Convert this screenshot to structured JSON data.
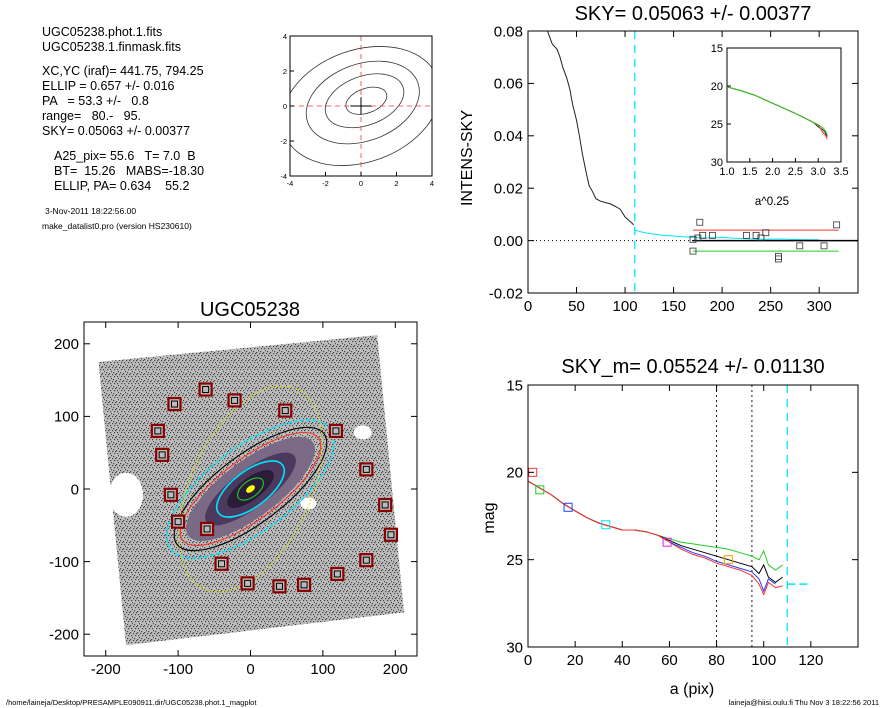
{
  "info": {
    "lines_a": [
      "UGC05238.phot.1.fits",
      "UGC05238.1.finmask.fits"
    ],
    "lines_b": [
      "XC,YC (iraf)=   441.75, 794.25",
      "ELLIP = 0.657 +/- 0.016",
      "PA   = 53.3 +/-   0.8",
      "range=   80.-   95.",
      "SKY= 0.05063 +/- 0.00377"
    ],
    "lines_c": [
      "A25_pix= 55.6   T= 7.0  B",
      "BT=  15.26   MABS=-18.30",
      "ELLIP, PA= 0.634    55.2"
    ],
    "date": "3-Nov-2011 18:22:56.00",
    "program": "make_datalist0.pro (version HS230610)"
  },
  "footer": {
    "left": "/home/laineja/Desktop/PRESAMPLE090911.dir/UGC05238.phot.1_magplot",
    "right": "laineja@hiisi.oulu.fi  Thu Nov  3 18:22:56 2011"
  },
  "colors": {
    "axis": "#000000",
    "cyan": "#00e5ff",
    "red": "#ff3030",
    "green": "#22cc22",
    "blue": "#2040ff",
    "magenta": "#dd22dd",
    "orange": "#ff9900"
  },
  "chart_data": [
    {
      "id": "contour",
      "type": "line",
      "title": "",
      "xlim": [
        -4,
        4
      ],
      "ylim": [
        -4,
        4
      ],
      "x_ticks": [
        "-4",
        "-2",
        "0",
        "2",
        "4"
      ],
      "y_ticks": [
        "-4",
        "-2",
        "0",
        "2",
        "4"
      ],
      "center": [
        0,
        0
      ],
      "contour_levels": [
        {
          "cx": 0.3,
          "cy": 0.3,
          "rx": 1.2,
          "ry": 0.7,
          "rot": -20
        },
        {
          "cx": 0.2,
          "cy": 0.3,
          "rx": 2.3,
          "ry": 1.4,
          "rot": -20
        },
        {
          "cx": 0.1,
          "cy": 0.2,
          "rx": 3.3,
          "ry": 2.2,
          "rot": -20
        },
        {
          "cx": 0.0,
          "cy": 0.0,
          "rx": 4.6,
          "ry": 3.2,
          "rot": -20
        }
      ]
    },
    {
      "id": "sky",
      "type": "line",
      "title": "SKY= 0.05063 +/- 0.00377",
      "xlabel": "",
      "ylabel": "INTENS-SKY",
      "xlim": [
        0,
        340
      ],
      "ylim": [
        -0.02,
        0.08
      ],
      "x_ticks": [
        "0",
        "50",
        "100",
        "150",
        "200",
        "250",
        "300"
      ],
      "y_ticks": [
        "-0.02",
        "0.00",
        "0.02",
        "0.04",
        "0.06",
        "0.08"
      ],
      "profile_x": [
        20,
        25,
        30,
        33,
        36,
        40,
        43,
        46,
        50,
        53,
        56,
        60,
        63,
        66,
        70,
        75,
        80,
        85,
        90,
        95,
        100,
        103,
        106,
        109
      ],
      "profile_y": [
        0.08,
        0.075,
        0.073,
        0.07,
        0.066,
        0.062,
        0.058,
        0.052,
        0.046,
        0.04,
        0.033,
        0.026,
        0.021,
        0.019,
        0.016,
        0.015,
        0.0145,
        0.014,
        0.013,
        0.012,
        0.009,
        0.008,
        0.007,
        0.006
      ],
      "cyan_x": [
        110,
        120,
        140,
        160,
        180,
        200,
        220,
        240,
        260,
        280,
        300
      ],
      "cyan_y": [
        0.004,
        0.003,
        0.002,
        0.0015,
        0.001,
        0.0012,
        0.0008,
        0.0005,
        0.0006,
        0.0004,
        0.0003
      ],
      "boxes": [
        [
          170,
          -0.004
        ],
        [
          175,
          0.001
        ],
        [
          177,
          0.007
        ],
        [
          180,
          0.002
        ],
        [
          190,
          0.002
        ],
        [
          225,
          0.002
        ],
        [
          235,
          0.002
        ],
        [
          240,
          0.001
        ],
        [
          245,
          0.003
        ],
        [
          258,
          -0.006
        ],
        [
          258,
          -0.007
        ],
        [
          280,
          -0.002
        ],
        [
          305,
          -0.002
        ],
        [
          318,
          0.006
        ],
        [
          170,
          0.0005
        ]
      ],
      "hlines": [
        {
          "y": 0.004,
          "x0": 170,
          "x1": 320,
          "c": "red"
        },
        {
          "y": -0.004,
          "x0": 170,
          "x1": 320,
          "c": "green"
        },
        {
          "y": 0.0,
          "x0": 170,
          "x1": 340,
          "c": "axis"
        }
      ],
      "vline_x": 110,
      "inset": {
        "xlabel": "a^0.25",
        "xlim": [
          1.0,
          3.5
        ],
        "ylim": [
          30,
          15
        ],
        "x_ticks": [
          "1.0",
          "1.5",
          "2.0",
          "2.5",
          "3.0",
          "3.5"
        ],
        "y_ticks": [
          "15",
          "20",
          "25",
          "30"
        ],
        "x": [
          1.0,
          1.3,
          1.6,
          1.9,
          2.2,
          2.5,
          2.7,
          2.9,
          3.0,
          3.1,
          3.15,
          3.2
        ],
        "y": [
          20.1,
          20.6,
          21.2,
          22.0,
          22.8,
          23.6,
          24.2,
          24.8,
          25.1,
          25.5,
          25.8,
          26.4
        ]
      }
    },
    {
      "id": "image",
      "type": "scatter",
      "title": "UGC05238",
      "xlim": [
        -230,
        230
      ],
      "ylim": [
        -230,
        230
      ],
      "x_ticks": [
        "-200",
        "-100",
        "0",
        "100",
        "200"
      ],
      "y_ticks": [
        "-200",
        "-100",
        "0",
        "100",
        "200"
      ],
      "sky_boxes": [
        [
          -62,
          137
        ],
        [
          -22,
          122
        ],
        [
          48,
          108
        ],
        [
          -105,
          117
        ],
        [
          -128,
          80
        ],
        [
          -122,
          47
        ],
        [
          118,
          80
        ],
        [
          160,
          27
        ],
        [
          186,
          -22
        ],
        [
          194,
          -63
        ],
        [
          160,
          -98
        ],
        [
          120,
          -117
        ],
        [
          74,
          -132
        ],
        [
          40,
          -134
        ],
        [
          -4,
          -130
        ],
        [
          -40,
          -103
        ],
        [
          -60,
          -55
        ],
        [
          -100,
          -45
        ],
        [
          -110,
          -8
        ]
      ],
      "ellipses": [
        {
          "rx": 92,
          "ry": 34,
          "rot": -37,
          "c": "#000000"
        },
        {
          "rx": 100,
          "ry": 42,
          "rot": -37,
          "c": "#00e5ff"
        },
        {
          "rx": 85,
          "ry": 30,
          "rot": -37,
          "c": "#ff3030"
        },
        {
          "rx": 110,
          "ry": 60,
          "rot": -65,
          "c": "#dddd00"
        },
        {
          "rx": 40,
          "ry": 18,
          "rot": -37,
          "c": "#00e5ff"
        },
        {
          "rx": 15,
          "ry": 8,
          "rot": -37,
          "c": "#22cc22"
        }
      ]
    },
    {
      "id": "mag",
      "type": "line",
      "title": "SKY_m=  0.05524 +/- 0.01130",
      "xlabel": "a (pix)",
      "ylabel": "mag",
      "xlim": [
        0,
        140
      ],
      "ylim": [
        30,
        15
      ],
      "x_ticks": [
        "0",
        "20",
        "40",
        "60",
        "80",
        "100",
        "120"
      ],
      "y_ticks": [
        "15",
        "20",
        "25",
        "30"
      ],
      "series": [
        {
          "c": "green",
          "x": [
            0,
            5,
            10,
            15,
            20,
            25,
            30,
            35,
            40,
            45,
            50,
            55,
            60,
            65,
            70,
            75,
            80,
            85,
            90,
            95,
            98,
            100,
            102,
            105,
            108
          ],
          "y": [
            20.5,
            20.9,
            21.3,
            21.8,
            22.2,
            22.6,
            22.9,
            23.1,
            23.3,
            23.3,
            23.4,
            23.6,
            23.8,
            24.0,
            24.1,
            24.2,
            24.3,
            24.4,
            24.6,
            24.8,
            25.0,
            24.5,
            25.3,
            25.6,
            25.3
          ]
        },
        {
          "c": "axis",
          "x": [
            0,
            5,
            10,
            15,
            20,
            25,
            30,
            35,
            40,
            45,
            50,
            55,
            60,
            65,
            70,
            75,
            80,
            85,
            90,
            95,
            98,
            100,
            102,
            105,
            108
          ],
          "y": [
            20.5,
            20.9,
            21.3,
            21.8,
            22.2,
            22.6,
            22.9,
            23.1,
            23.3,
            23.3,
            23.4,
            23.6,
            23.9,
            24.2,
            24.4,
            24.6,
            24.8,
            25.0,
            25.2,
            25.4,
            25.8,
            25.3,
            26.0,
            26.3,
            26.0
          ]
        },
        {
          "c": "red",
          "x": [
            0,
            5,
            10,
            15,
            20,
            25,
            30,
            35,
            40,
            45,
            50,
            55,
            60,
            65,
            70,
            75,
            80,
            85,
            90,
            95,
            98,
            100,
            102,
            105,
            108
          ],
          "y": [
            20.5,
            20.9,
            21.3,
            21.8,
            22.2,
            22.6,
            22.9,
            23.1,
            23.3,
            23.3,
            23.4,
            23.6,
            24.0,
            24.4,
            24.7,
            24.9,
            25.2,
            25.4,
            25.6,
            25.9,
            26.4,
            27.0,
            26.3,
            26.6,
            26.5
          ]
        },
        {
          "c": "blue",
          "x": [
            60,
            65,
            70,
            75,
            80,
            85,
            90,
            95,
            98,
            100,
            102,
            105
          ],
          "y": [
            24.0,
            24.3,
            24.6,
            24.8,
            25.1,
            25.3,
            25.5,
            25.7,
            26.1,
            26.8,
            26.1,
            26.4
          ]
        }
      ],
      "markers": [
        [
          2,
          20.0,
          "red"
        ],
        [
          5,
          21.0,
          "green"
        ],
        [
          17,
          22.0,
          "blue"
        ],
        [
          33,
          23.0,
          "cyan"
        ],
        [
          59,
          24.0,
          "magenta"
        ],
        [
          85,
          25.0,
          "orange"
        ]
      ],
      "vlines": [
        {
          "x": 80,
          "c": "axis",
          "dash": "2,3"
        },
        {
          "x": 95,
          "c": "axis",
          "dash": "2,3"
        },
        {
          "x": 110,
          "c": "cyan",
          "dash": "8,6"
        }
      ],
      "tail": {
        "x0": 110,
        "x1": 120,
        "y": 26.4
      }
    }
  ]
}
